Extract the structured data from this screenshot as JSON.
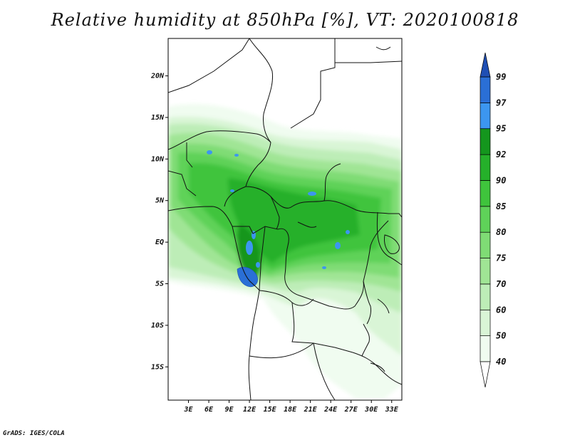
{
  "title": "Relative humidity at 850hPa [%], VT: 2020100818",
  "footer": "GrADS: IGES/COLA",
  "map": {
    "lon_range": [
      0,
      34.5
    ],
    "lat_range": [
      -19,
      24.5
    ],
    "lat_ticks": [
      {
        "value": 20,
        "label": "20N"
      },
      {
        "value": 15,
        "label": "15N"
      },
      {
        "value": 10,
        "label": "10N"
      },
      {
        "value": 5,
        "label": "5N"
      },
      {
        "value": 0,
        "label": "EQ"
      },
      {
        "value": -5,
        "label": "5S"
      },
      {
        "value": -10,
        "label": "10S"
      },
      {
        "value": -15,
        "label": "15S"
      }
    ],
    "lon_ticks": [
      {
        "value": 3,
        "label": "3E"
      },
      {
        "value": 6,
        "label": "6E"
      },
      {
        "value": 9,
        "label": "9E"
      },
      {
        "value": 12,
        "label": "12E"
      },
      {
        "value": 15,
        "label": "15E"
      },
      {
        "value": 18,
        "label": "18E"
      },
      {
        "value": 21,
        "label": "21E"
      },
      {
        "value": 24,
        "label": "24E"
      },
      {
        "value": 27,
        "label": "27E"
      },
      {
        "value": 30,
        "label": "30E"
      },
      {
        "value": 33,
        "label": "33E"
      }
    ]
  },
  "colorbar": {
    "labels": [
      "40",
      "50",
      "60",
      "70",
      "75",
      "80",
      "85",
      "90",
      "92",
      "95",
      "97",
      "99"
    ],
    "colors": [
      "#f0fcf0",
      "#d9f5d6",
      "#bdedb7",
      "#a0e595",
      "#7fdc75",
      "#5fd259",
      "#3fc43c",
      "#25b02a",
      "#14961d",
      "#3c96f0",
      "#2a6fd6",
      "#1f4fb4"
    ]
  }
}
